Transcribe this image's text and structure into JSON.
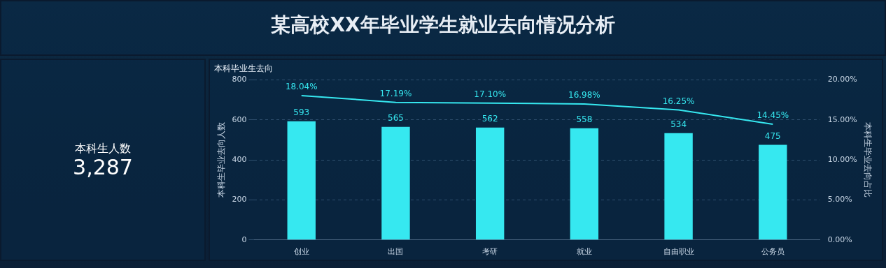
{
  "chart_data": [
    {
      "type": "other",
      "title": "某高校XX年毕业学生就业去向情况分析"
    },
    {
      "type": "other",
      "title": "本科生人数",
      "annotations": [
        "3,287"
      ]
    },
    {
      "type": "bar",
      "title": "本科毕业生去向",
      "categories": [
        "创业",
        "出国",
        "考研",
        "就业",
        "自由职业",
        "公务员"
      ],
      "ylabel": "本科生毕业去向人数",
      "y2label": "本科生毕业去向占比",
      "ylim": [
        0,
        800
      ],
      "yticks": [
        0,
        200,
        400,
        600,
        800
      ],
      "y2lim": [
        0,
        20
      ],
      "y2ticks": [
        {
          "value": 0,
          "label": "0.00%"
        },
        {
          "value": 5,
          "label": "5.00%"
        },
        {
          "value": 10,
          "label": "10.00%"
        },
        {
          "value": 15,
          "label": "15.00%"
        },
        {
          "value": 20,
          "label": "20.00%"
        }
      ],
      "grid": "y",
      "legend": false,
      "marker": "none",
      "series": [
        {
          "type": "bar",
          "color": "#36e8f0",
          "values": [
            593,
            565,
            562,
            558,
            534,
            475
          ],
          "value_labels": [
            "593",
            "565",
            "562",
            "558",
            "534",
            "475"
          ]
        },
        {
          "type": "line",
          "axis": "y2",
          "color": "#36e8f0",
          "values": [
            18.04,
            17.19,
            17.1,
            16.98,
            16.25,
            14.45
          ],
          "value_labels": [
            "18.04%",
            "17.19%",
            "17.10%",
            "16.98%",
            "16.25%",
            "14.45%"
          ]
        }
      ]
    }
  ]
}
